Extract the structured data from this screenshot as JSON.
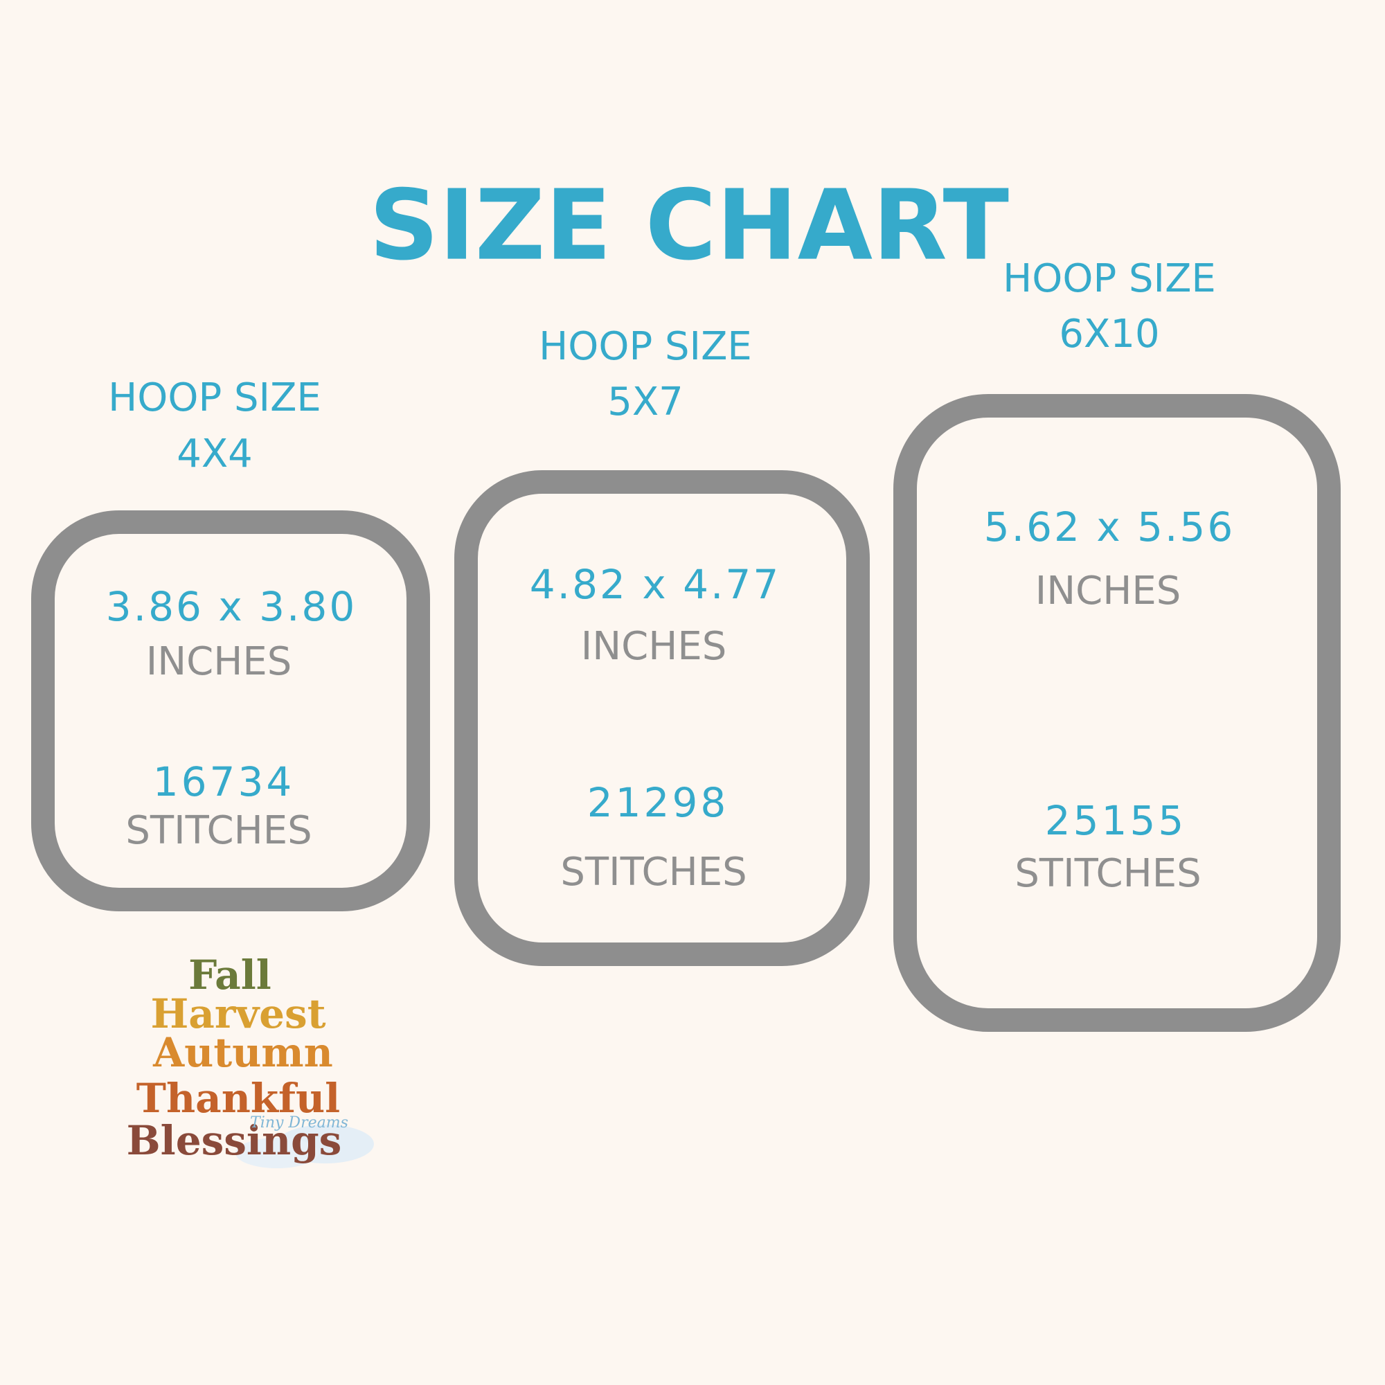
{
  "title": "SIZE CHART",
  "hoops": [
    {
      "label": "HOOP SIZE",
      "size": "4X4",
      "dimensions": "3.86 x 3.80",
      "unit": "INCHES",
      "stitches": "16734",
      "stitches_label": "STITCHES"
    },
    {
      "label": "HOOP SIZE",
      "size": "5X7",
      "dimensions": "4.82 x 4.77",
      "unit": "INCHES",
      "stitches": "21298",
      "stitches_label": "STITCHES"
    },
    {
      "label": "HOOP SIZE",
      "size": "6X10",
      "dimensions": "5.62 x 5.56",
      "unit": "INCHES",
      "stitches": "25155",
      "stitches_label": "STITCHES"
    }
  ],
  "artwork": {
    "words": [
      "Fall",
      "Harvest",
      "Autumn",
      "Thankful",
      "Blessings"
    ],
    "watermark": "Tiny Dreams"
  }
}
